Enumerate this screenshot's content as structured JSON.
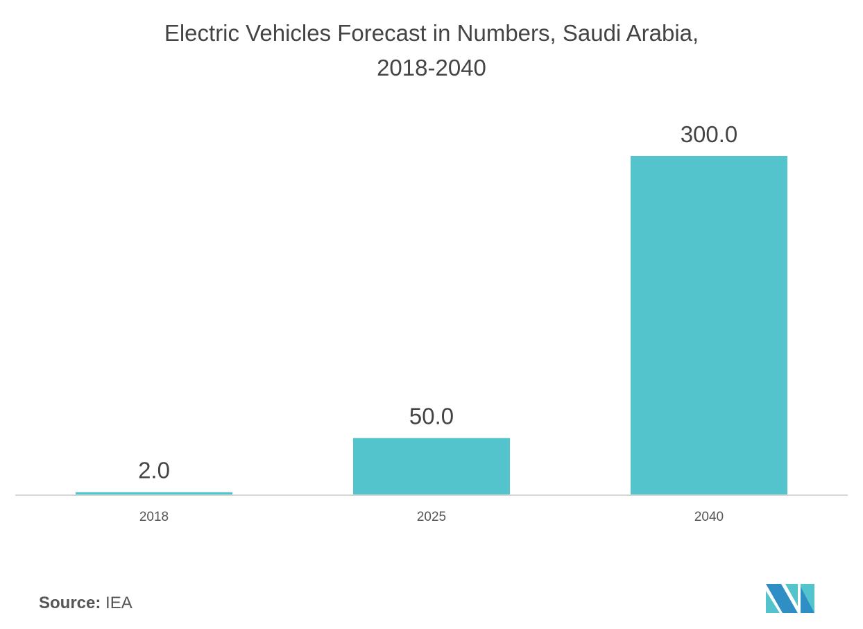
{
  "chart_data": {
    "type": "bar",
    "title_lines": [
      "Electric Vehicles Forecast in Numbers, Saudi Arabia,",
      "2018-2040"
    ],
    "categories": [
      "2018",
      "2025",
      "2040"
    ],
    "values": [
      2.0,
      50.0,
      300.0
    ],
    "data_labels": [
      "2.0",
      "50.0",
      "300.0"
    ],
    "ylim": [
      0,
      300
    ],
    "grid": false,
    "bar_color": "#53c4cb"
  },
  "source": {
    "label": "Source:",
    "value": "IEA"
  },
  "logo": {
    "colors": [
      "#2f8fc4",
      "#53c4cb"
    ]
  }
}
